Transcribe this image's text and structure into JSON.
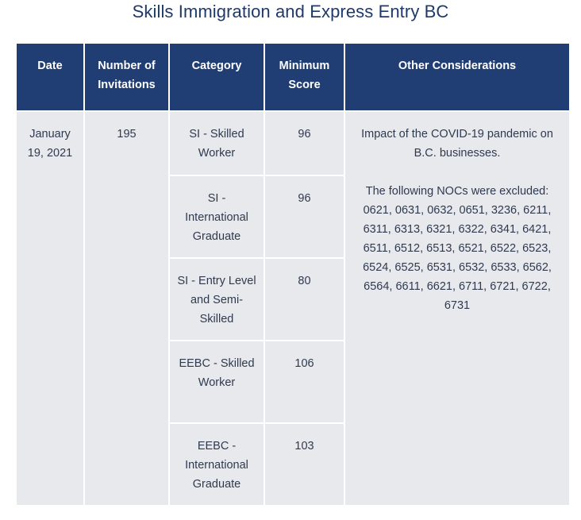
{
  "title": "Skills Immigration and Express Entry BC",
  "table": {
    "headers": {
      "date": "Date",
      "invitations": "Number of Invitations",
      "category": "Category",
      "min_score": "Minimum Score",
      "other": "Other Considerations"
    },
    "date": "January 19, 2021",
    "invitations": "195",
    "rows": [
      {
        "category": "SI - Skilled Worker",
        "score": "96"
      },
      {
        "category": "SI - International Graduate",
        "score": "96"
      },
      {
        "category": "SI - Entry Level and Semi-Skilled",
        "score": "80"
      },
      {
        "category": "EEBC - Skilled Worker",
        "score": "106"
      },
      {
        "category": "EEBC - International Graduate",
        "score": "103"
      }
    ],
    "considerations": {
      "impact": "Impact of the COVID-19 pandemic on B.C. businesses.",
      "excluded": "The following NOCs were excluded: 0621, 0631, 0632, 0651, 3236, 6211, 6311, 6313, 6321, 6322, 6341, 6421, 6511, 6512, 6513, 6521, 6522, 6523, 6524, 6525, 6531, 6532, 6533, 6562, 6564, 6611, 6621, 6711, 6721, 6722, 6731"
    }
  }
}
